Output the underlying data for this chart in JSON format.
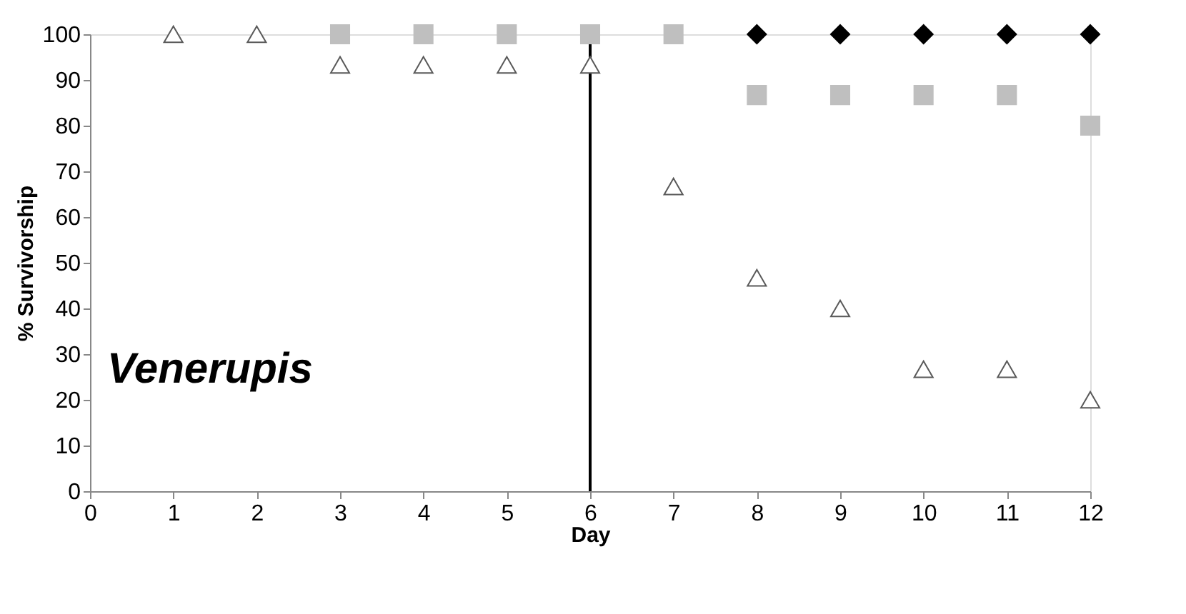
{
  "chart_data": {
    "type": "scatter",
    "xlabel": "Day",
    "ylabel": "% Survivorship",
    "xlim": [
      0,
      12
    ],
    "ylim": [
      0,
      100
    ],
    "xticks": [
      0,
      1,
      2,
      3,
      4,
      5,
      6,
      7,
      8,
      9,
      10,
      11,
      12
    ],
    "yticks": [
      0,
      10,
      20,
      30,
      40,
      50,
      60,
      70,
      80,
      90,
      100
    ],
    "grid": false,
    "legend": false,
    "series": [
      {
        "color": "#000000",
        "marker": "diamond",
        "x": [
          8,
          9,
          10,
          11,
          12
        ],
        "values": [
          100,
          100,
          100,
          100,
          100
        ]
      },
      {
        "color": "#bfbfbf",
        "marker": "square",
        "x": [
          3,
          4,
          5,
          6,
          7,
          8,
          9,
          10,
          11,
          12
        ],
        "values": [
          100,
          100,
          100,
          100,
          100,
          86.7,
          86.7,
          86.7,
          86.7,
          80
        ]
      },
      {
        "color": "#ffffff",
        "marker": "triangle",
        "x": [
          1,
          2,
          3,
          4,
          5,
          6,
          7,
          8,
          9,
          10,
          11,
          12
        ],
        "values": [
          100,
          100,
          93.3,
          93.3,
          93.3,
          93.3,
          66.7,
          46.7,
          40,
          26.7,
          26.7,
          20
        ]
      }
    ],
    "ref_lines": [
      {
        "axis": "x",
        "value": 6,
        "color": "#000000"
      }
    ],
    "annotations": [
      "Venerupis"
    ]
  }
}
